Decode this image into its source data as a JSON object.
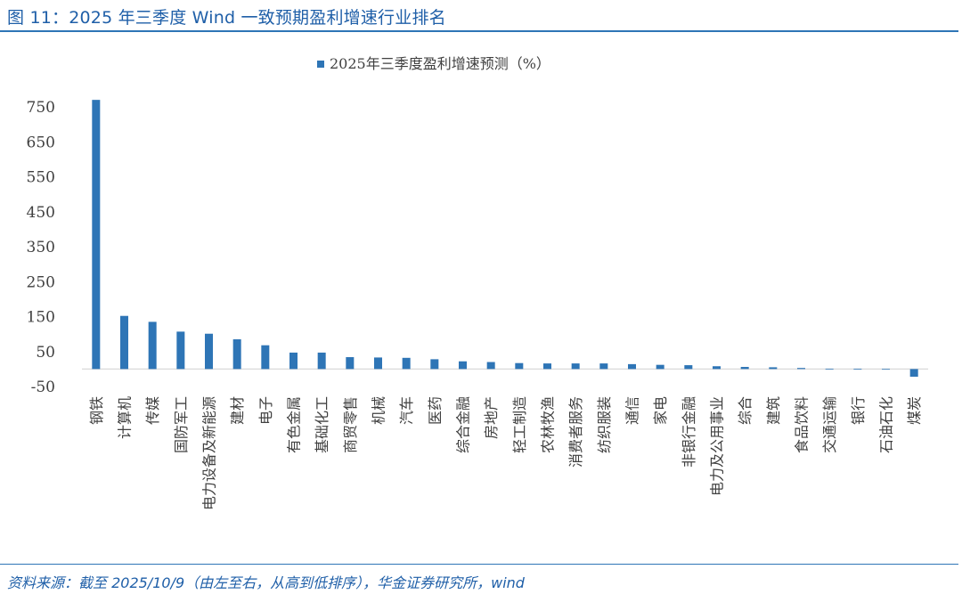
{
  "header": {
    "title": "图 11：2025 年三季度 Wind 一致预期盈利增速行业排名"
  },
  "footer": {
    "source": "资料来源：截至 2025/10/9（由左至右，从高到低排序），华金证券研究所，wind"
  },
  "colors": {
    "bar": "#2e75b6",
    "accent": "#1f5fa8",
    "axis": "#d9d9d9",
    "text": "#404040"
  },
  "chart_data": {
    "type": "bar",
    "legend_position": "top-center",
    "grid": false,
    "ylim": [
      -50,
      750
    ],
    "yticks": [
      750,
      650,
      550,
      450,
      350,
      250,
      150,
      50,
      -50
    ],
    "series": [
      {
        "name": "2025年三季度盈利增速预测（%）",
        "values": [
          770,
          152,
          135,
          107,
          101,
          85,
          68,
          47,
          47,
          34,
          33,
          32,
          28,
          22,
          20,
          17,
          16,
          16,
          16,
          14,
          12,
          11,
          8,
          6,
          5,
          3,
          1,
          0.5,
          0.2,
          -22
        ]
      }
    ],
    "categories": [
      "钢铁",
      "计算机",
      "传媒",
      "国防军工",
      "电力设备及新能源",
      "建材",
      "电子",
      "有色金属",
      "基础化工",
      "商贸零售",
      "机械",
      "汽车",
      "医药",
      "综合金融",
      "房地产",
      "轻工制造",
      "农林牧渔",
      "消费者服务",
      "纺织服装",
      "通信",
      "家电",
      "非银行金融",
      "电力及公用事业",
      "综合",
      "建筑",
      "食品饮料",
      "交通运输",
      "银行",
      "石油石化",
      "煤炭"
    ]
  }
}
